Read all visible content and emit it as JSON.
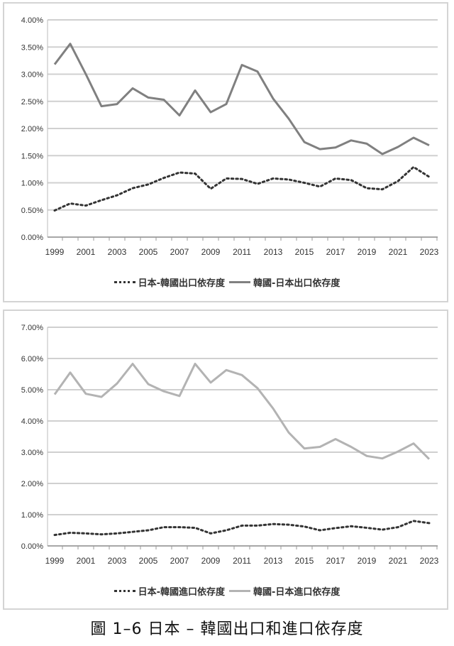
{
  "chart_data": [
    {
      "type": "line",
      "title": "",
      "xlabel": "",
      "ylabel": "",
      "x": [
        "1999",
        "2000",
        "2001",
        "2002",
        "2003",
        "2004",
        "2005",
        "2006",
        "2007",
        "2008",
        "2009",
        "2010",
        "2011",
        "2012",
        "2013",
        "2014",
        "2015",
        "2016",
        "2017",
        "2018",
        "2019",
        "2020",
        "2021",
        "2022",
        "2023"
      ],
      "x_tick_labels": [
        "1999",
        "2001",
        "2003",
        "2005",
        "2007",
        "2009",
        "2011",
        "2013",
        "2015",
        "2017",
        "2019",
        "2021",
        "2023"
      ],
      "y_tick_labels": [
        "0.00%",
        "0.50%",
        "1.00%",
        "1.50%",
        "2.00%",
        "2.50%",
        "3.00%",
        "3.50%",
        "4.00%"
      ],
      "ylim": [
        0,
        4
      ],
      "grid": true,
      "legend_position": "bottom",
      "series": [
        {
          "name": "日本-韓國出口依存度",
          "style": "dotted",
          "color": "#333333",
          "values": [
            0.49,
            0.62,
            0.58,
            0.68,
            0.77,
            0.9,
            0.97,
            1.09,
            1.19,
            1.17,
            0.89,
            1.08,
            1.07,
            0.98,
            1.08,
            1.06,
            1.0,
            0.93,
            1.08,
            1.05,
            0.9,
            0.88,
            1.03,
            1.29,
            1.11
          ]
        },
        {
          "name": "韓國-日本出口依存度",
          "style": "solid",
          "color": "#808080",
          "values": [
            3.18,
            3.56,
            3.0,
            2.41,
            2.45,
            2.74,
            2.57,
            2.53,
            2.24,
            2.7,
            2.3,
            2.45,
            3.17,
            3.05,
            2.55,
            2.18,
            1.75,
            1.62,
            1.65,
            1.78,
            1.72,
            1.53,
            1.66,
            1.83,
            1.69
          ]
        }
      ]
    },
    {
      "type": "line",
      "title": "",
      "xlabel": "",
      "ylabel": "",
      "x": [
        "1999",
        "2000",
        "2001",
        "2002",
        "2003",
        "2004",
        "2005",
        "2006",
        "2007",
        "2008",
        "2009",
        "2010",
        "2011",
        "2012",
        "2013",
        "2014",
        "2015",
        "2016",
        "2017",
        "2018",
        "2019",
        "2020",
        "2021",
        "2022",
        "2023"
      ],
      "x_tick_labels": [
        "1999",
        "2001",
        "2003",
        "2005",
        "2007",
        "2009",
        "2011",
        "2013",
        "2015",
        "2017",
        "2019",
        "2021",
        "2023"
      ],
      "y_tick_labels": [
        "0.00%",
        "1.00%",
        "2.00%",
        "3.00%",
        "4.00%",
        "5.00%",
        "6.00%",
        "7.00%"
      ],
      "ylim": [
        0,
        7
      ],
      "grid": true,
      "legend_position": "bottom",
      "series": [
        {
          "name": "日本-韓國進口依存度",
          "style": "dotted",
          "color": "#333333",
          "values": [
            0.35,
            0.42,
            0.4,
            0.37,
            0.4,
            0.45,
            0.5,
            0.6,
            0.6,
            0.58,
            0.4,
            0.5,
            0.65,
            0.65,
            0.7,
            0.68,
            0.62,
            0.5,
            0.57,
            0.63,
            0.58,
            0.52,
            0.6,
            0.8,
            0.73
          ]
        },
        {
          "name": "韓國-日本進口依存度",
          "style": "solid",
          "color": "#b3b3b3",
          "values": [
            4.85,
            5.55,
            4.87,
            4.77,
            5.2,
            5.83,
            5.18,
            4.95,
            4.8,
            5.83,
            5.23,
            5.63,
            5.47,
            5.05,
            4.4,
            3.63,
            3.12,
            3.17,
            3.42,
            3.17,
            2.88,
            2.8,
            3.02,
            3.28,
            2.78
          ]
        }
      ]
    }
  ],
  "caption": "圖 1–6 日本 – 韓國出口和進口依存度"
}
